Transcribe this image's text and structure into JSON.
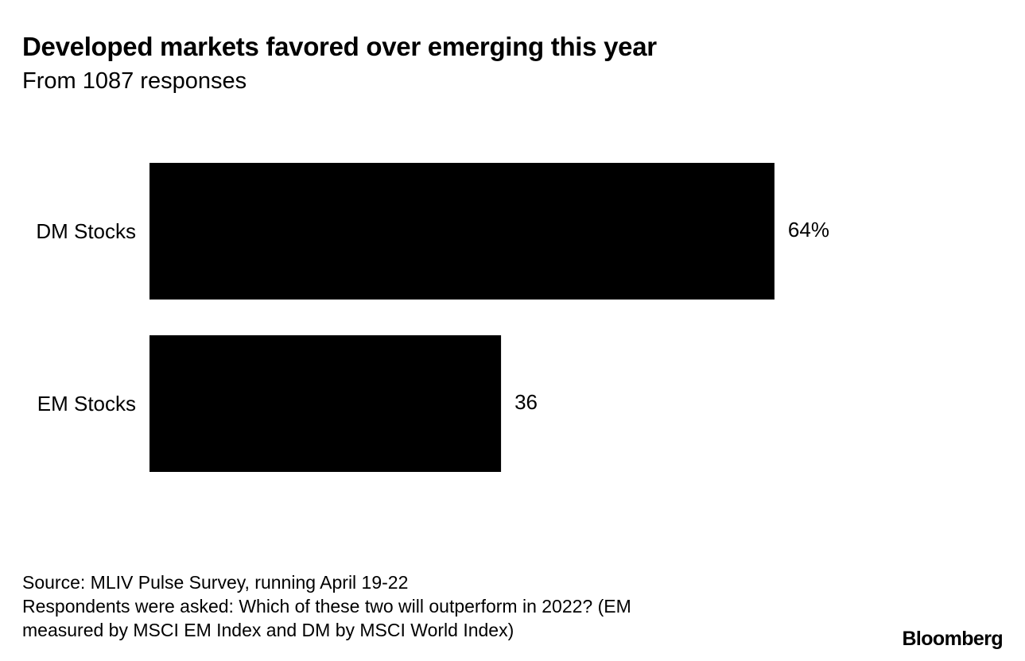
{
  "chart_data": {
    "type": "bar",
    "orientation": "horizontal",
    "title": "Developed markets favored over emerging this year",
    "subtitle": "From 1087 responses",
    "categories": [
      "DM Stocks",
      "EM Stocks"
    ],
    "values": [
      64,
      36
    ],
    "value_labels": [
      "64%",
      "36"
    ],
    "unit": "%",
    "xlim": [
      0,
      100
    ],
    "grid": false,
    "legend": "none",
    "bar_color": "#000000"
  },
  "footnote": {
    "lines": [
      "Source: MLIV Pulse Survey, running April 19-22",
      "Respondents were asked: Which of these two will outperform in 2022? (EM",
      "measured by MSCI EM Index and DM by MSCI World Index)"
    ]
  },
  "brand": {
    "name": "Bloomberg"
  }
}
